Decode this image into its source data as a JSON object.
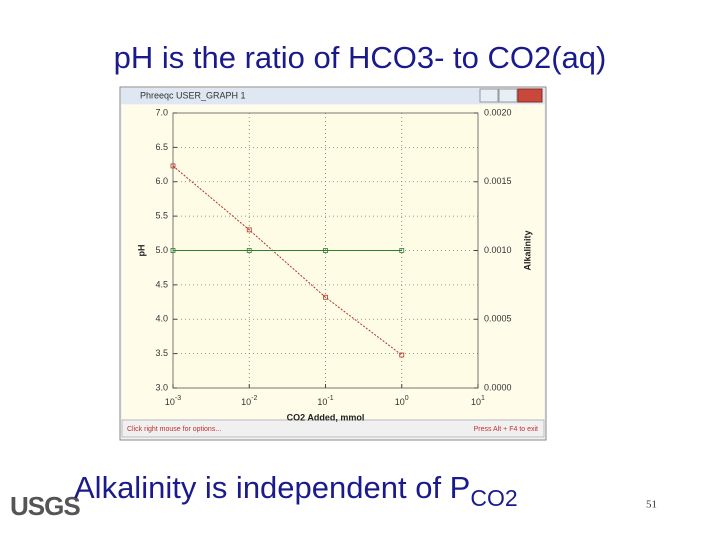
{
  "slide": {
    "title": "pH is the ratio of HCO3- to CO2(aq)",
    "footer_text": "Alkalinity is independent of P",
    "footer_subscript": "CO2",
    "page_number": "51",
    "logo": "USGS"
  },
  "window": {
    "title": "Phreeqc USER_GRAPH 1",
    "status_left": "Click right mouse for options...",
    "status_right": "Press Alt + F4 to exit"
  },
  "chart_data": {
    "type": "line",
    "x_label": "CO2 Added, mmol",
    "y_label": "pH",
    "y2_label": "Alkalinity",
    "x": [
      0.001,
      0.01,
      0.1,
      1
    ],
    "log_x": true,
    "grid": true,
    "series": [
      {
        "name": "pH",
        "color": "#b5332a",
        "values": [
          6.23,
          5.3,
          4.32,
          3.48
        ]
      },
      {
        "name": "Alkalinity",
        "color": "#2e7d32",
        "axis": "y2",
        "values": [
          0.001,
          0.001,
          0.001,
          0.001
        ]
      }
    ],
    "xlim": [
      0.001,
      10
    ],
    "xticks": [
      {
        "value": 0.001,
        "label": "10",
        "exponent": "-3"
      },
      {
        "value": 0.01,
        "label": "10",
        "exponent": "-2"
      },
      {
        "value": 0.1,
        "label": "10",
        "exponent": "-1"
      },
      {
        "value": 1,
        "label": "10",
        "exponent": "0"
      },
      {
        "value": 10,
        "label": "10",
        "exponent": "1"
      }
    ],
    "ylim": [
      3,
      7
    ],
    "yticks": [
      {
        "value": 3,
        "label": "3.0"
      },
      {
        "value": 3.5,
        "label": "3.5"
      },
      {
        "value": 4,
        "label": "4.0"
      },
      {
        "value": 4.5,
        "label": "4.5"
      },
      {
        "value": 5,
        "label": "5.0"
      },
      {
        "value": 5.5,
        "label": "5.5"
      },
      {
        "value": 6,
        "label": "6.0"
      },
      {
        "value": 6.5,
        "label": "6.5"
      },
      {
        "value": 7,
        "label": "7.0"
      }
    ],
    "y2lim": [
      0,
      0.002
    ],
    "y2ticks": [
      {
        "value": 0,
        "label": "0.0000"
      },
      {
        "value": 0.0005,
        "label": "0.0005"
      },
      {
        "value": 0.001,
        "label": "0.0010"
      },
      {
        "value": 0.0015,
        "label": "0.0015"
      },
      {
        "value": 0.002,
        "label": "0.0020"
      }
    ]
  }
}
